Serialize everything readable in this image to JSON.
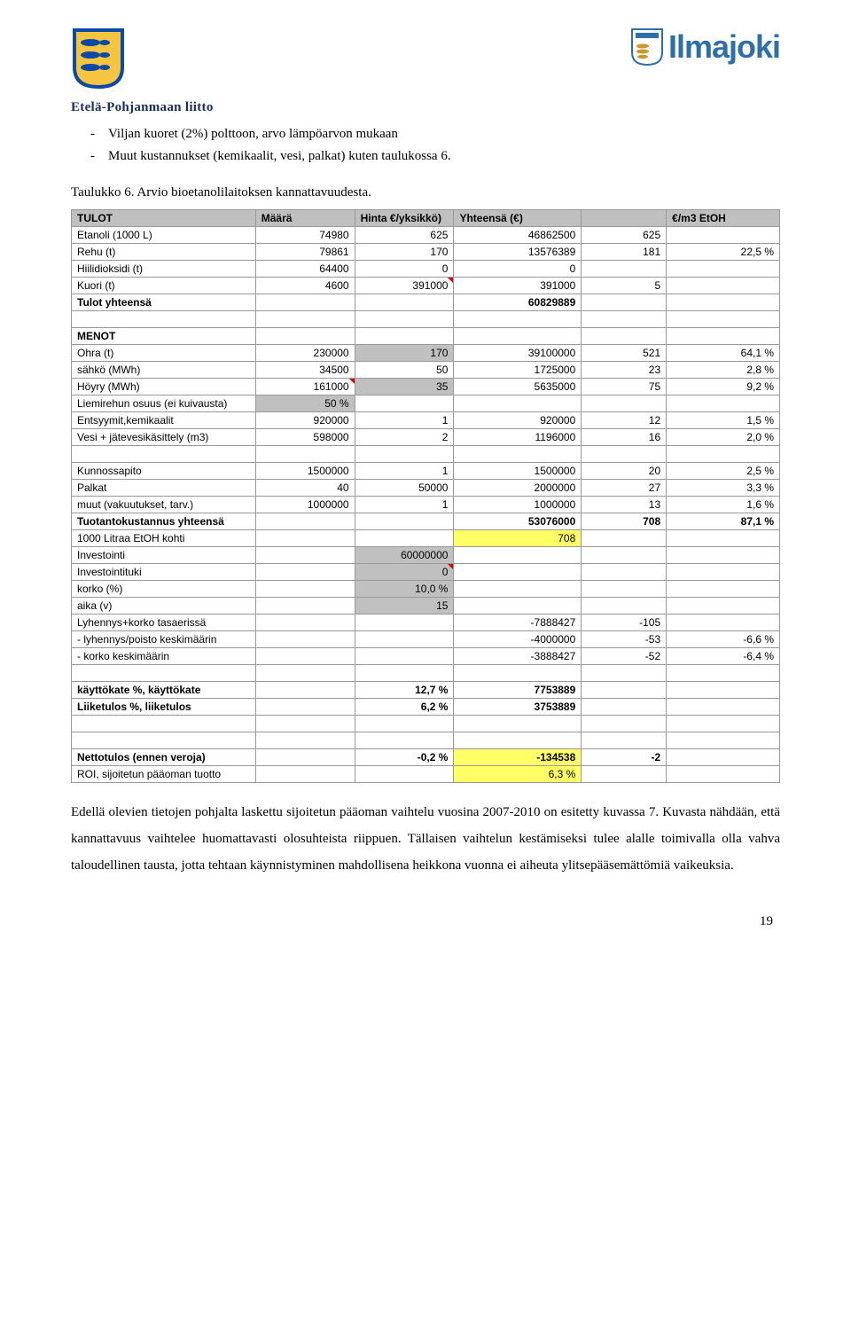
{
  "header": {
    "liitto_text": "Etelä-Pohjanmaan liitto",
    "right_brand": "Ilmajoki"
  },
  "bullets": [
    "Viljan kuoret (2%) polttoon, arvo lämpöarvon mukaan",
    "Muut kustannukset (kemikaalit, vesi, palkat) kuten taulukossa 6."
  ],
  "table_caption": "Taulukko 6. Arvio bioetanolilaitoksen kannattavuudesta.",
  "table": {
    "headers": [
      "TULOT",
      "Määrä",
      "Hinta €/yksikkö)",
      "Yhteensä (€)",
      "",
      "€/m3 EtOH"
    ],
    "rows": [
      {
        "t": "row",
        "c": [
          "Etanoli (1000 L)",
          "74980",
          "625",
          "46862500",
          "625",
          ""
        ]
      },
      {
        "t": "row",
        "c": [
          "Rehu (t)",
          "79861",
          "170",
          "13576389",
          "181",
          "22,5 %"
        ]
      },
      {
        "t": "row",
        "c": [
          "Hiilidioksidi (t)",
          "64400",
          "0",
          "0",
          "",
          ""
        ]
      },
      {
        "t": "row",
        "c": [
          "Kuori (t)",
          "4600",
          "391000",
          "391000",
          "5",
          ""
        ],
        "mark": [
          2
        ]
      },
      {
        "t": "row",
        "c": [
          "Tulot yhteensä",
          "",
          "",
          "60829889",
          "",
          ""
        ],
        "bold": true
      },
      {
        "t": "gap"
      },
      {
        "t": "row",
        "c": [
          "MENOT",
          "",
          "",
          "",
          "",
          ""
        ],
        "bold": true
      },
      {
        "t": "row",
        "c": [
          "Ohra (t)",
          "230000",
          "170",
          "39100000",
          "521",
          "64,1 %"
        ],
        "gray": [
          2
        ]
      },
      {
        "t": "row",
        "c": [
          "sähkö (MWh)",
          "34500",
          "50",
          "1725000",
          "23",
          "2,8 %"
        ]
      },
      {
        "t": "row",
        "c": [
          "Höyry (MWh)",
          "161000",
          "35",
          "5635000",
          "75",
          "9,2 %"
        ],
        "mark": [
          1
        ],
        "gray": [
          2
        ]
      },
      {
        "t": "row",
        "c": [
          "Liemirehun osuus (ei kuivausta)",
          "50 %",
          "",
          "",
          "",
          ""
        ],
        "gray": [
          1
        ]
      },
      {
        "t": "row",
        "c": [
          "Entsyymit,kemikaalit",
          "920000",
          "1",
          "920000",
          "12",
          "1,5 %"
        ]
      },
      {
        "t": "row",
        "c": [
          "Vesi + jätevesikäsittely (m3)",
          "598000",
          "2",
          "1196000",
          "16",
          "2,0 %"
        ]
      },
      {
        "t": "gap"
      },
      {
        "t": "row",
        "c": [
          "Kunnossapito",
          "1500000",
          "1",
          "1500000",
          "20",
          "2,5 %"
        ]
      },
      {
        "t": "row",
        "c": [
          "Palkat",
          "40",
          "50000",
          "2000000",
          "27",
          "3,3 %"
        ]
      },
      {
        "t": "row",
        "c": [
          "muut (vakuutukset, tarv.)",
          "1000000",
          "1",
          "1000000",
          "13",
          "1,6 %"
        ]
      },
      {
        "t": "row",
        "c": [
          "Tuotantokustannus yhteensä",
          "",
          "",
          "53076000",
          "708",
          "87,1 %"
        ],
        "bold": true
      },
      {
        "t": "row",
        "c": [
          "1000 Litraa EtOH kohti",
          "",
          "",
          "708",
          "",
          ""
        ],
        "hl": [
          3
        ]
      },
      {
        "t": "row",
        "c": [
          "Investointi",
          "",
          "60000000",
          "",
          "",
          ""
        ],
        "gray": [
          2
        ]
      },
      {
        "t": "row",
        "c": [
          "Investointituki",
          "",
          "0",
          "",
          "",
          ""
        ],
        "gray": [
          2
        ],
        "mark": [
          2
        ]
      },
      {
        "t": "row",
        "c": [
          "korko (%)",
          "",
          "10,0 %",
          "",
          "",
          ""
        ],
        "gray": [
          2
        ]
      },
      {
        "t": "row",
        "c": [
          "aika (v)",
          "",
          "15",
          "",
          "",
          ""
        ],
        "gray": [
          2
        ]
      },
      {
        "t": "row",
        "c": [
          "Lyhennys+korko tasaerissä",
          "",
          "",
          "-7888427",
          "-105",
          ""
        ]
      },
      {
        "t": "row",
        "c": [
          " - lyhennys/poisto keskimäärin",
          "",
          "",
          "-4000000",
          "-53",
          "-6,6 %"
        ]
      },
      {
        "t": "row",
        "c": [
          " - korko keskimäärin",
          "",
          "",
          "-3888427",
          "-52",
          "-6,4 %"
        ]
      },
      {
        "t": "gap"
      },
      {
        "t": "row",
        "c": [
          "käyttökate %, käyttökate",
          "",
          "12,7 %",
          "7753889",
          "",
          ""
        ],
        "bold": true
      },
      {
        "t": "row",
        "c": [
          "Liiketulos %, liiketulos",
          "",
          "6,2 %",
          "3753889",
          "",
          ""
        ],
        "bold": true
      },
      {
        "t": "gap"
      },
      {
        "t": "gap"
      },
      {
        "t": "row",
        "c": [
          "Nettotulos (ennen veroja)",
          "",
          "-0,2 %",
          "-134538",
          "-2",
          ""
        ],
        "bold": true,
        "hl": [
          3
        ]
      },
      {
        "t": "row",
        "c": [
          "ROI, sijoitetun pääoman tuotto",
          "",
          "",
          "6,3 %",
          "",
          ""
        ],
        "hl": [
          3
        ]
      }
    ]
  },
  "bottom_paragraph": "Edellä olevien tietojen pohjalta laskettu sijoitetun pääoman vaihtelu vuosina 2007-2010 on esitetty kuvassa 7. Kuvasta nähdään, että kannattavuus vaihtelee huomattavasti olosuhteista riippuen. Tällaisen vaihtelun kestämiseksi tulee alalle toimivalla olla vahva taloudellinen tausta, jotta tehtaan käynnistyminen mahdollisena heikkona vuonna ei aiheuta ylitsepääsemättömiä vaikeuksia.",
  "page_number": "19"
}
